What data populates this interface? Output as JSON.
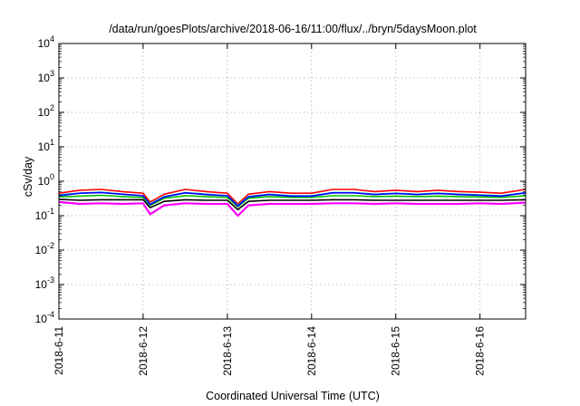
{
  "chart_data": {
    "type": "line",
    "title": "/data/run/goesPlots/archive/2018-06-16/11:00/flux/../bryn/5daysMoon.plot",
    "xlabel": "Coordinated Universal Time (UTC)",
    "ylabel": "cSv/day",
    "y_scale": "log",
    "ylim": [
      0.0001,
      10000
    ],
    "y_ticks": [
      {
        "base": "10",
        "exp": "-4",
        "value": 0.0001
      },
      {
        "base": "10",
        "exp": "-3",
        "value": 0.001
      },
      {
        "base": "10",
        "exp": "-2",
        "value": 0.01
      },
      {
        "base": "10",
        "exp": "-1",
        "value": 0.1
      },
      {
        "base": "10",
        "exp": "0",
        "value": 1
      },
      {
        "base": "10",
        "exp": "1",
        "value": 10
      },
      {
        "base": "10",
        "exp": "2",
        "value": 100
      },
      {
        "base": "10",
        "exp": "3",
        "value": 1000
      },
      {
        "base": "10",
        "exp": "4",
        "value": 10000
      }
    ],
    "x_ticks": [
      "2018-6-11",
      "2018-6-12",
      "2018-6-13",
      "2018-6-14",
      "2018-6-15",
      "2018-6-16"
    ],
    "xlim": [
      "2018-06-11 00:00",
      "2018-06-16 13:00"
    ],
    "grid": true,
    "legend": "none",
    "series_colors": [
      "#ff00ff",
      "#000000",
      "#ff0000",
      "#00c0c0",
      "#00c000",
      "#0000ff"
    ],
    "series": [
      {
        "color": "#ff00ff",
        "points": [
          [
            "2018-06-11 00:00",
            0.25
          ],
          [
            "2018-06-11 06:00",
            0.22
          ],
          [
            "2018-06-11 12:00",
            0.23
          ],
          [
            "2018-06-11 18:00",
            0.22
          ],
          [
            "2018-06-12 00:00",
            0.23
          ],
          [
            "2018-06-12 02:00",
            0.11
          ],
          [
            "2018-06-12 06:00",
            0.2
          ],
          [
            "2018-06-12 12:00",
            0.23
          ],
          [
            "2018-06-12 18:00",
            0.22
          ],
          [
            "2018-06-13 00:00",
            0.22
          ],
          [
            "2018-06-13 03:00",
            0.1
          ],
          [
            "2018-06-13 06:00",
            0.2
          ],
          [
            "2018-06-13 12:00",
            0.22
          ],
          [
            "2018-06-13 18:00",
            0.22
          ],
          [
            "2018-06-14 00:00",
            0.22
          ],
          [
            "2018-06-14 06:00",
            0.23
          ],
          [
            "2018-06-14 12:00",
            0.23
          ],
          [
            "2018-06-14 18:00",
            0.22
          ],
          [
            "2018-06-15 00:00",
            0.23
          ],
          [
            "2018-06-15 06:00",
            0.22
          ],
          [
            "2018-06-15 12:00",
            0.22
          ],
          [
            "2018-06-15 18:00",
            0.22
          ],
          [
            "2018-06-16 00:00",
            0.23
          ],
          [
            "2018-06-16 06:00",
            0.22
          ],
          [
            "2018-06-16 13:00",
            0.24
          ]
        ]
      },
      {
        "color": "#000000",
        "points": [
          [
            "2018-06-11 00:00",
            0.3
          ],
          [
            "2018-06-11 06:00",
            0.28
          ],
          [
            "2018-06-11 12:00",
            0.29
          ],
          [
            "2018-06-11 18:00",
            0.29
          ],
          [
            "2018-06-12 00:00",
            0.29
          ],
          [
            "2018-06-12 02:00",
            0.17
          ],
          [
            "2018-06-12 06:00",
            0.26
          ],
          [
            "2018-06-12 12:00",
            0.29
          ],
          [
            "2018-06-12 18:00",
            0.28
          ],
          [
            "2018-06-13 00:00",
            0.28
          ],
          [
            "2018-06-13 03:00",
            0.15
          ],
          [
            "2018-06-13 06:00",
            0.26
          ],
          [
            "2018-06-13 12:00",
            0.28
          ],
          [
            "2018-06-13 18:00",
            0.28
          ],
          [
            "2018-06-14 00:00",
            0.28
          ],
          [
            "2018-06-14 06:00",
            0.29
          ],
          [
            "2018-06-14 12:00",
            0.29
          ],
          [
            "2018-06-14 18:00",
            0.28
          ],
          [
            "2018-06-15 00:00",
            0.28
          ],
          [
            "2018-06-15 06:00",
            0.28
          ],
          [
            "2018-06-15 12:00",
            0.28
          ],
          [
            "2018-06-15 18:00",
            0.28
          ],
          [
            "2018-06-16 00:00",
            0.28
          ],
          [
            "2018-06-16 06:00",
            0.28
          ],
          [
            "2018-06-16 13:00",
            0.29
          ]
        ]
      },
      {
        "color": "#ff0000",
        "points": [
          [
            "2018-06-11 00:00",
            0.45
          ],
          [
            "2018-06-11 06:00",
            0.55
          ],
          [
            "2018-06-11 12:00",
            0.58
          ],
          [
            "2018-06-11 18:00",
            0.5
          ],
          [
            "2018-06-12 00:00",
            0.45
          ],
          [
            "2018-06-12 02:00",
            0.25
          ],
          [
            "2018-06-12 06:00",
            0.42
          ],
          [
            "2018-06-12 12:00",
            0.58
          ],
          [
            "2018-06-12 18:00",
            0.5
          ],
          [
            "2018-06-13 00:00",
            0.45
          ],
          [
            "2018-06-13 03:00",
            0.22
          ],
          [
            "2018-06-13 06:00",
            0.42
          ],
          [
            "2018-06-13 12:00",
            0.5
          ],
          [
            "2018-06-13 18:00",
            0.45
          ],
          [
            "2018-06-14 00:00",
            0.45
          ],
          [
            "2018-06-14 06:00",
            0.58
          ],
          [
            "2018-06-14 12:00",
            0.58
          ],
          [
            "2018-06-14 18:00",
            0.5
          ],
          [
            "2018-06-15 00:00",
            0.55
          ],
          [
            "2018-06-15 06:00",
            0.5
          ],
          [
            "2018-06-15 12:00",
            0.55
          ],
          [
            "2018-06-15 18:00",
            0.5
          ],
          [
            "2018-06-16 00:00",
            0.48
          ],
          [
            "2018-06-16 06:00",
            0.45
          ],
          [
            "2018-06-16 13:00",
            0.58
          ]
        ]
      },
      {
        "color": "#00c0c0",
        "points": [
          [
            "2018-06-11 00:00",
            0.4
          ],
          [
            "2018-06-11 06:00",
            0.45
          ],
          [
            "2018-06-11 12:00",
            0.48
          ],
          [
            "2018-06-11 18:00",
            0.42
          ],
          [
            "2018-06-12 00:00",
            0.38
          ],
          [
            "2018-06-12 02:00",
            0.22
          ],
          [
            "2018-06-12 06:00",
            0.36
          ],
          [
            "2018-06-12 12:00",
            0.47
          ],
          [
            "2018-06-12 18:00",
            0.42
          ],
          [
            "2018-06-13 00:00",
            0.38
          ],
          [
            "2018-06-13 03:00",
            0.2
          ],
          [
            "2018-06-13 06:00",
            0.36
          ],
          [
            "2018-06-13 12:00",
            0.42
          ],
          [
            "2018-06-13 18:00",
            0.38
          ],
          [
            "2018-06-14 00:00",
            0.38
          ],
          [
            "2018-06-14 06:00",
            0.47
          ],
          [
            "2018-06-14 12:00",
            0.47
          ],
          [
            "2018-06-14 18:00",
            0.42
          ],
          [
            "2018-06-15 00:00",
            0.45
          ],
          [
            "2018-06-15 06:00",
            0.42
          ],
          [
            "2018-06-15 12:00",
            0.45
          ],
          [
            "2018-06-15 18:00",
            0.42
          ],
          [
            "2018-06-16 00:00",
            0.4
          ],
          [
            "2018-06-16 06:00",
            0.38
          ],
          [
            "2018-06-16 13:00",
            0.47
          ]
        ]
      },
      {
        "color": "#00c000",
        "points": [
          [
            "2018-06-11 00:00",
            0.35
          ],
          [
            "2018-06-11 06:00",
            0.37
          ],
          [
            "2018-06-11 12:00",
            0.39
          ],
          [
            "2018-06-11 18:00",
            0.36
          ],
          [
            "2018-06-12 00:00",
            0.34
          ],
          [
            "2018-06-12 02:00",
            0.2
          ],
          [
            "2018-06-12 06:00",
            0.32
          ],
          [
            "2018-06-12 12:00",
            0.38
          ],
          [
            "2018-06-12 18:00",
            0.36
          ],
          [
            "2018-06-13 00:00",
            0.34
          ],
          [
            "2018-06-13 03:00",
            0.18
          ],
          [
            "2018-06-13 06:00",
            0.32
          ],
          [
            "2018-06-13 12:00",
            0.36
          ],
          [
            "2018-06-13 18:00",
            0.34
          ],
          [
            "2018-06-14 00:00",
            0.34
          ],
          [
            "2018-06-14 06:00",
            0.38
          ],
          [
            "2018-06-14 12:00",
            0.38
          ],
          [
            "2018-06-14 18:00",
            0.36
          ],
          [
            "2018-06-15 00:00",
            0.37
          ],
          [
            "2018-06-15 06:00",
            0.36
          ],
          [
            "2018-06-15 12:00",
            0.37
          ],
          [
            "2018-06-15 18:00",
            0.36
          ],
          [
            "2018-06-16 00:00",
            0.35
          ],
          [
            "2018-06-16 06:00",
            0.34
          ],
          [
            "2018-06-16 13:00",
            0.38
          ]
        ]
      },
      {
        "color": "#0000ff",
        "points": [
          [
            "2018-06-11 00:00",
            0.38
          ],
          [
            "2018-06-11 06:00",
            0.45
          ],
          [
            "2018-06-11 12:00",
            0.47
          ],
          [
            "2018-06-11 18:00",
            0.42
          ],
          [
            "2018-06-12 00:00",
            0.38
          ],
          [
            "2018-06-12 02:00",
            0.21
          ],
          [
            "2018-06-12 06:00",
            0.35
          ],
          [
            "2018-06-12 12:00",
            0.46
          ],
          [
            "2018-06-12 18:00",
            0.41
          ],
          [
            "2018-06-13 00:00",
            0.38
          ],
          [
            "2018-06-13 03:00",
            0.19
          ],
          [
            "2018-06-13 06:00",
            0.35
          ],
          [
            "2018-06-13 12:00",
            0.41
          ],
          [
            "2018-06-13 18:00",
            0.37
          ],
          [
            "2018-06-14 00:00",
            0.37
          ],
          [
            "2018-06-14 06:00",
            0.46
          ],
          [
            "2018-06-14 12:00",
            0.46
          ],
          [
            "2018-06-14 18:00",
            0.41
          ],
          [
            "2018-06-15 00:00",
            0.44
          ],
          [
            "2018-06-15 06:00",
            0.41
          ],
          [
            "2018-06-15 12:00",
            0.44
          ],
          [
            "2018-06-15 18:00",
            0.41
          ],
          [
            "2018-06-16 00:00",
            0.39
          ],
          [
            "2018-06-16 06:00",
            0.37
          ],
          [
            "2018-06-16 13:00",
            0.46
          ]
        ]
      }
    ]
  }
}
